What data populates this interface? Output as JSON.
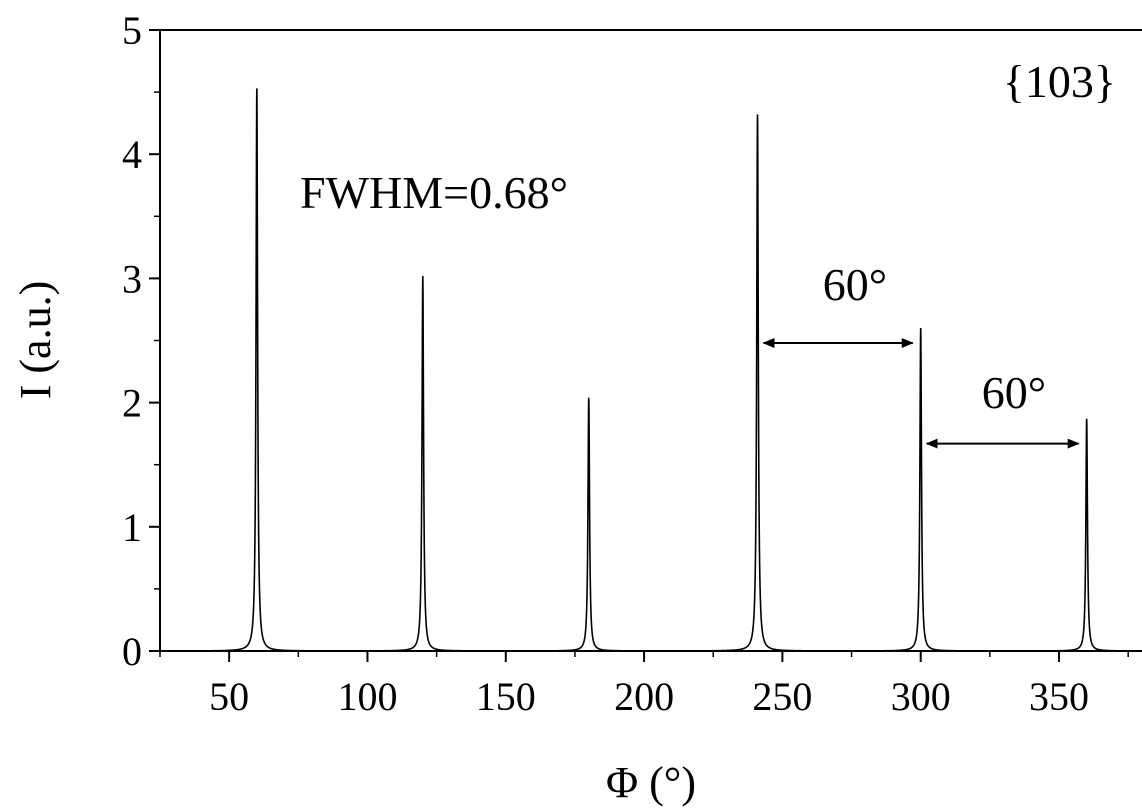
{
  "chart_data": {
    "type": "line",
    "title": "",
    "xlabel": "Φ (°)",
    "ylabel": "I (a.u.)",
    "xlim": [
      25,
      380
    ],
    "ylim": [
      0,
      5
    ],
    "xticks": [
      50,
      100,
      150,
      200,
      250,
      300,
      350
    ],
    "yticks": [
      0,
      1,
      2,
      3,
      4,
      5
    ],
    "grid": false,
    "peak_fwhm_deg": 0.68,
    "series": [
      {
        "peaks": [
          {
            "x": 60,
            "y": 4.53
          },
          {
            "x": 120,
            "y": 3.02
          },
          {
            "x": 180,
            "y": 2.04
          },
          {
            "x": 241,
            "y": 4.32
          },
          {
            "x": 300,
            "y": 2.6
          },
          {
            "x": 360,
            "y": 1.87
          }
        ]
      }
    ],
    "annotations": {
      "plane": "{103}",
      "fwhm": "FWHM=0.68°",
      "spacing_1": "60°",
      "spacing_2": "60°"
    },
    "spacing_arrows": [
      {
        "x_from": 241,
        "x_to": 300,
        "y": 2.48
      },
      {
        "x_from": 300,
        "x_to": 360,
        "y": 1.67
      }
    ]
  }
}
